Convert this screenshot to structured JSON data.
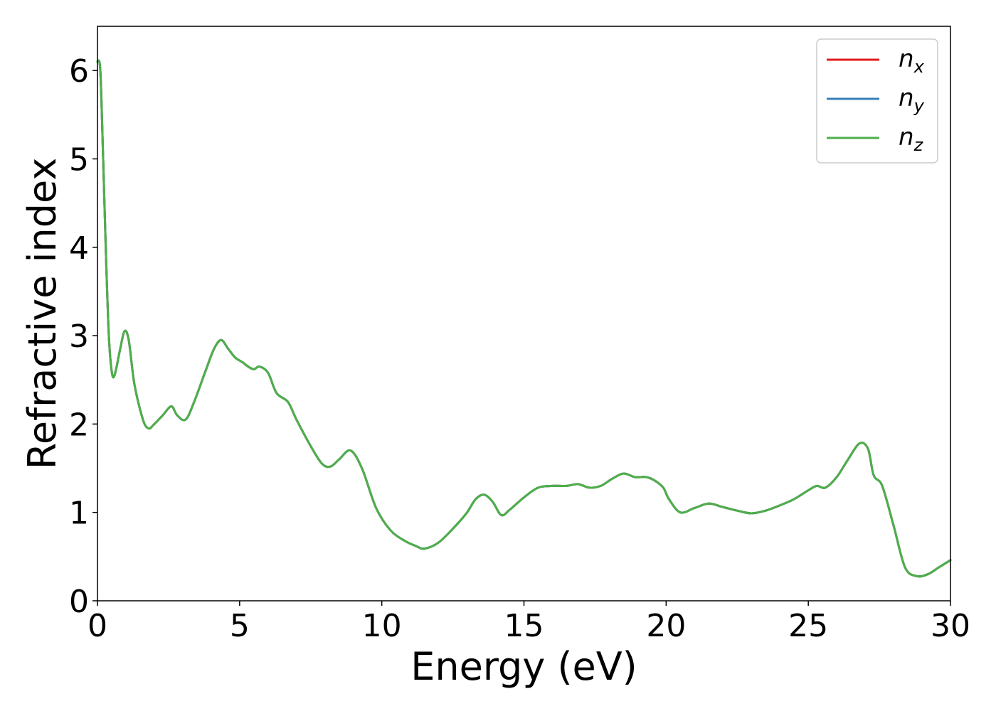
{
  "chart_data": {
    "type": "line",
    "title": "",
    "xlabel": "Energy (eV)",
    "ylabel": "Refractive index",
    "xlim": [
      0,
      30
    ],
    "ylim": [
      0,
      6.5
    ],
    "xticks": [
      0,
      5,
      10,
      15,
      20,
      25,
      30
    ],
    "yticks": [
      0,
      1,
      2,
      3,
      4,
      5,
      6
    ],
    "grid": false,
    "legend": {
      "placement": "top-right",
      "entries": [
        {
          "base": "n",
          "sub": "x",
          "color": "#e41a1c"
        },
        {
          "base": "n",
          "sub": "y",
          "color": "#377eb8"
        },
        {
          "base": "n",
          "sub": "z",
          "color": "#4daf4a"
        }
      ]
    },
    "x": [
      0,
      0.1,
      0.2,
      0.3,
      0.4,
      0.5,
      0.6,
      0.8,
      0.95,
      1.1,
      1.3,
      1.6,
      1.8,
      2.0,
      2.3,
      2.6,
      2.8,
      3.1,
      3.4,
      3.8,
      4.1,
      4.35,
      4.6,
      4.85,
      5.1,
      5.3,
      5.5,
      5.7,
      6.0,
      6.3,
      6.7,
      7.0,
      7.5,
      7.9,
      8.2,
      8.5,
      8.9,
      9.3,
      9.8,
      10.3,
      10.8,
      11.2,
      11.5,
      12.0,
      12.6,
      13.0,
      13.3,
      13.6,
      13.9,
      14.2,
      14.5,
      15.0,
      15.5,
      16.0,
      16.5,
      16.9,
      17.3,
      17.7,
      18.1,
      18.5,
      18.9,
      19.3,
      19.6,
      19.9,
      20.1,
      20.5,
      21.0,
      21.5,
      22.0,
      22.5,
      23.0,
      23.5,
      24.0,
      24.5,
      25.0,
      25.3,
      25.6,
      26.0,
      26.4,
      26.8,
      27.1,
      27.3,
      27.6,
      28.0,
      28.4,
      28.8,
      29.2,
      29.6,
      30.0
    ],
    "series": [
      {
        "name": "n_x",
        "color": "#e41a1c",
        "values": [
          6.1,
          6.0,
          5.0,
          3.9,
          3.0,
          2.6,
          2.55,
          2.85,
          3.05,
          2.95,
          2.45,
          2.05,
          1.95,
          2.0,
          2.1,
          2.2,
          2.1,
          2.05,
          2.25,
          2.6,
          2.85,
          2.95,
          2.85,
          2.75,
          2.7,
          2.65,
          2.62,
          2.65,
          2.58,
          2.35,
          2.25,
          2.05,
          1.75,
          1.55,
          1.52,
          1.6,
          1.7,
          1.5,
          1.05,
          0.8,
          0.68,
          0.62,
          0.59,
          0.66,
          0.85,
          1.0,
          1.15,
          1.2,
          1.12,
          0.97,
          1.03,
          1.17,
          1.28,
          1.3,
          1.3,
          1.32,
          1.28,
          1.3,
          1.38,
          1.44,
          1.4,
          1.4,
          1.36,
          1.28,
          1.15,
          1.0,
          1.05,
          1.1,
          1.06,
          1.02,
          0.99,
          1.02,
          1.08,
          1.15,
          1.25,
          1.3,
          1.28,
          1.4,
          1.6,
          1.78,
          1.72,
          1.42,
          1.3,
          0.85,
          0.38,
          0.28,
          0.3,
          0.38,
          0.46
        ]
      },
      {
        "name": "n_y",
        "color": "#377eb8",
        "values": [
          6.1,
          6.0,
          5.0,
          3.9,
          3.0,
          2.6,
          2.55,
          2.85,
          3.05,
          2.95,
          2.45,
          2.05,
          1.95,
          2.0,
          2.1,
          2.2,
          2.1,
          2.05,
          2.25,
          2.6,
          2.85,
          2.95,
          2.85,
          2.75,
          2.7,
          2.65,
          2.62,
          2.65,
          2.58,
          2.35,
          2.25,
          2.05,
          1.75,
          1.55,
          1.52,
          1.6,
          1.7,
          1.5,
          1.05,
          0.8,
          0.68,
          0.62,
          0.59,
          0.66,
          0.85,
          1.0,
          1.15,
          1.2,
          1.12,
          0.97,
          1.03,
          1.17,
          1.28,
          1.3,
          1.3,
          1.32,
          1.28,
          1.3,
          1.38,
          1.44,
          1.4,
          1.4,
          1.36,
          1.28,
          1.15,
          1.0,
          1.05,
          1.1,
          1.06,
          1.02,
          0.99,
          1.02,
          1.08,
          1.15,
          1.25,
          1.3,
          1.28,
          1.4,
          1.6,
          1.78,
          1.72,
          1.42,
          1.3,
          0.85,
          0.38,
          0.28,
          0.3,
          0.38,
          0.46
        ]
      },
      {
        "name": "n_z",
        "color": "#4daf4a",
        "values": [
          6.1,
          6.0,
          5.0,
          3.9,
          3.0,
          2.6,
          2.55,
          2.85,
          3.05,
          2.95,
          2.45,
          2.05,
          1.95,
          2.0,
          2.1,
          2.2,
          2.1,
          2.05,
          2.25,
          2.6,
          2.85,
          2.95,
          2.85,
          2.75,
          2.7,
          2.65,
          2.62,
          2.65,
          2.58,
          2.35,
          2.25,
          2.05,
          1.75,
          1.55,
          1.52,
          1.6,
          1.7,
          1.5,
          1.05,
          0.8,
          0.68,
          0.62,
          0.59,
          0.66,
          0.85,
          1.0,
          1.15,
          1.2,
          1.12,
          0.97,
          1.03,
          1.17,
          1.28,
          1.3,
          1.3,
          1.32,
          1.28,
          1.3,
          1.38,
          1.44,
          1.4,
          1.4,
          1.36,
          1.28,
          1.15,
          1.0,
          1.05,
          1.1,
          1.06,
          1.02,
          0.99,
          1.02,
          1.08,
          1.15,
          1.25,
          1.3,
          1.28,
          1.4,
          1.6,
          1.78,
          1.72,
          1.42,
          1.3,
          0.85,
          0.38,
          0.28,
          0.3,
          0.38,
          0.46
        ]
      }
    ]
  }
}
